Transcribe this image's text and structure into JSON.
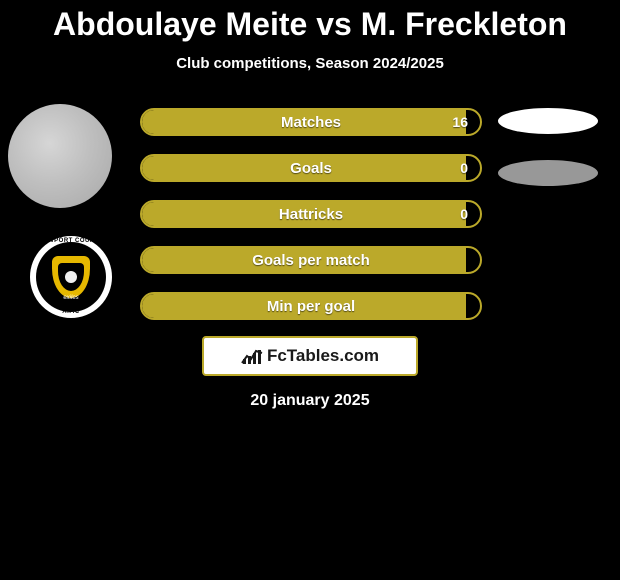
{
  "title": "Abdoulaye Meite vs M. Freckleton",
  "subtitle": "Club competitions, Season 2024/2025",
  "date": "20 january 2025",
  "footer_brand": "FcTables.com",
  "colors": {
    "bar_border": "#bba92a",
    "bar_fill": "#bba92a",
    "background": "#000000"
  },
  "crest": {
    "top_text": "NEWPORT COUNTY",
    "bottom_text": "A.F.C",
    "year_left": "1912",
    "year_right": "1989",
    "banner": "exiles"
  },
  "bars": [
    {
      "label": "Matches",
      "value": "16",
      "fill_percent": 96,
      "show_value": true
    },
    {
      "label": "Goals",
      "value": "0",
      "fill_percent": 96,
      "show_value": true
    },
    {
      "label": "Hattricks",
      "value": "0",
      "fill_percent": 96,
      "show_value": true
    },
    {
      "label": "Goals per match",
      "value": "",
      "fill_percent": 96,
      "show_value": false
    },
    {
      "label": "Min per goal",
      "value": "",
      "fill_percent": 96,
      "show_value": false
    }
  ]
}
